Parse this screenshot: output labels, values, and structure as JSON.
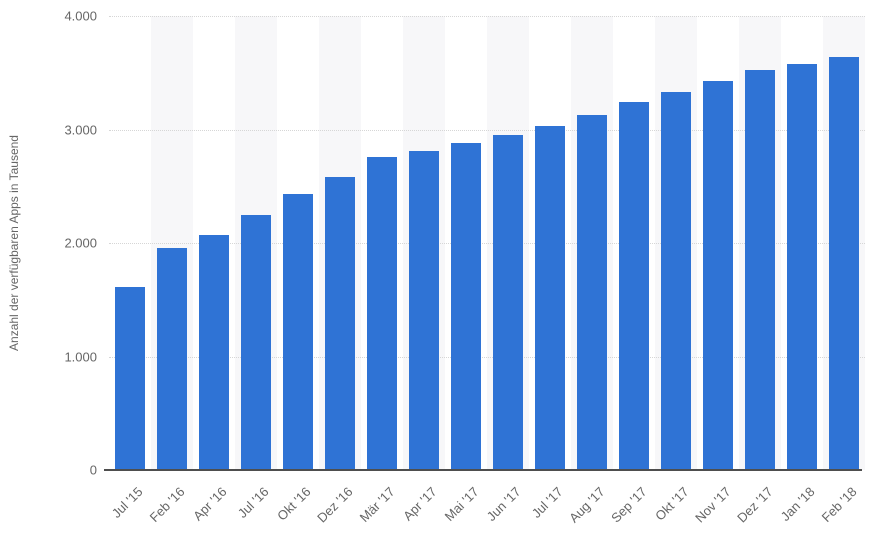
{
  "chart_data": {
    "type": "bar",
    "title": "",
    "ylabel": "Anzahl der verfügbaren Apps in Tausend",
    "xlabel": "",
    "categories": [
      "Jul '15",
      "Feb '16",
      "Apr '16",
      "Jul '16",
      "Okt '16",
      "Dez '16",
      "Mär '17",
      "Apr '17",
      "Mai '17",
      "Jun '17",
      "Jul '17",
      "Aug '17",
      "Sep '17",
      "Okt '17",
      "Nov '17",
      "Dez '17",
      "Jan '18",
      "Feb '18"
    ],
    "values": [
      1610,
      1960,
      2070,
      2250,
      2430,
      2580,
      2760,
      2810,
      2880,
      2950,
      3030,
      3130,
      3240,
      3330,
      3430,
      3520,
      3580,
      3640
    ],
    "ylim": [
      0,
      4000
    ],
    "yticks": [
      {
        "label": "4.000",
        "value": 4000
      },
      {
        "label": "3.000",
        "value": 3000
      },
      {
        "label": "2.000",
        "value": 2000
      },
      {
        "label": "1.000",
        "value": 1000
      },
      {
        "label": "0",
        "value": 0
      }
    ],
    "grid": "dotted horizontal",
    "legend": "none",
    "layout": {
      "alternating_category_bands": true,
      "x_tick_rotation": -45
    },
    "colors": {
      "bar": "#2f73d5",
      "band_alt": "#f7f7f9",
      "gridline": "#d6d6d6",
      "axis_line": "#4e4e4e",
      "tick_text": "#666666",
      "background": "#ffffff"
    }
  }
}
